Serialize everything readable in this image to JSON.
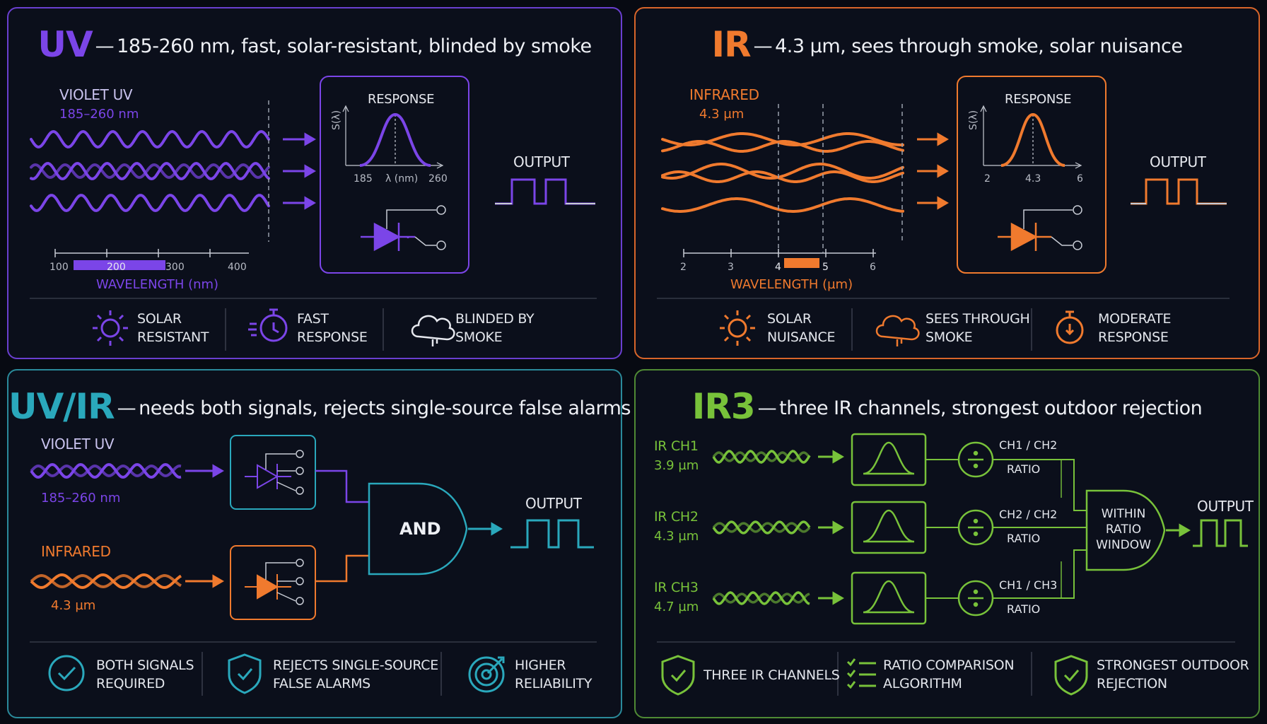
{
  "colors": {
    "uv": "#7b45e8",
    "ir": "#f07a2e",
    "uvir": "#2aa8bc",
    "ir3": "#78c23a",
    "text": "#e6e8ee"
  },
  "uv": {
    "tag": "UV",
    "title": "185-260 nm, fast, solar-resistant, blinded by smoke",
    "source_label": "VIOLET UV",
    "source_range": "185–260 nm",
    "response_title": "RESPONSE",
    "response_axis_y": "S(λ)",
    "response_axis_x": "λ (nm)",
    "response_ticks": [
      "185",
      "260"
    ],
    "output_label": "OUTPUT",
    "spectrum_ticks": [
      "100",
      "200",
      "300",
      "400"
    ],
    "spectrum_band": [
      185,
      260
    ],
    "spectrum_label": "WAVELENGTH (nm)",
    "features": [
      {
        "icon": "sun-icon",
        "l1": "SOLAR",
        "l2": "RESISTANT"
      },
      {
        "icon": "stopwatch-fast-icon",
        "l1": "FAST",
        "l2": "RESPONSE"
      },
      {
        "icon": "cloud-icon",
        "l1": "BLINDED BY",
        "l2": "SMOKE"
      }
    ]
  },
  "ir": {
    "tag": "IR",
    "title": "4.3 µm, sees through smoke, solar nuisance",
    "source_label": "INFRARED",
    "source_range": "4.3 µm",
    "response_title": "RESPONSE",
    "response_axis_y": "S(λ)",
    "response_ticks": [
      "2",
      "4.3",
      "6"
    ],
    "output_label": "OUTPUT",
    "spectrum_ticks": [
      "2",
      "3",
      "4",
      "5",
      "6"
    ],
    "spectrum_band": [
      4.1,
      4.6
    ],
    "spectrum_label": "WAVELENGTH (µm)",
    "features": [
      {
        "icon": "sun-icon",
        "l1": "SOLAR",
        "l2": "NUISANCE"
      },
      {
        "icon": "cloud-icon",
        "l1": "SEES THROUGH",
        "l2": "SMOKE"
      },
      {
        "icon": "stopwatch-icon",
        "l1": "MODERATE",
        "l2": "RESPONSE"
      }
    ]
  },
  "uvir": {
    "tag": "UV/IR",
    "title": "needs both signals, rejects single-source false alarms",
    "uv_label": "VIOLET UV",
    "uv_range": "185–260 nm",
    "ir_label": "INFRARED",
    "ir_range": "4.3 µm",
    "gate_label": "AND",
    "output_label": "OUTPUT",
    "features": [
      {
        "icon": "check-circle-icon",
        "l1": "BOTH SIGNALS",
        "l2": "REQUIRED"
      },
      {
        "icon": "shield-check-icon",
        "l1": "REJECTS SINGLE-SOURCE",
        "l2": "FALSE ALARMS"
      },
      {
        "icon": "target-icon",
        "l1": "HIGHER",
        "l2": "RELIABILITY"
      }
    ]
  },
  "ir3": {
    "tag": "IR3",
    "title": "three IR channels, strongest outdoor rejection",
    "channels": [
      {
        "name": "IR CH1",
        "wavelength": "3.9 µm",
        "ratio": "CH1 / CH2",
        "ratio_label": "RATIO"
      },
      {
        "name": "IR CH2",
        "wavelength": "4.3 µm",
        "ratio": "CH2 / CH2",
        "ratio_label": "RATIO"
      },
      {
        "name": "IR CH3",
        "wavelength": "4.7 µm",
        "ratio": "CH1 / CH3",
        "ratio_label": "RATIO"
      }
    ],
    "window_lines": [
      "WITHIN",
      "RATIO",
      "WINDOW"
    ],
    "output_label": "OUTPUT",
    "features": [
      {
        "icon": "shield-check-icon",
        "l1": "THREE IR CHANNELS",
        "l2": ""
      },
      {
        "icon": "checklist-icon",
        "l1": "RATIO COMPARISON",
        "l2": "ALGORITHM"
      },
      {
        "icon": "shield-check-icon",
        "l1": "STRONGEST OUTDOOR",
        "l2": "REJECTION"
      }
    ]
  }
}
